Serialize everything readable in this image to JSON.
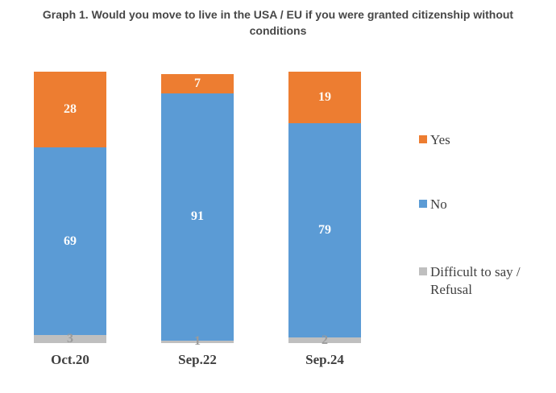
{
  "page": {
    "title_lines": [
      "Graph 1. Would you move to live in the USA / EU if you were granted citizenship without",
      "conditions"
    ]
  },
  "chart_data": {
    "type": "bar",
    "stacked": true,
    "title": "Graph 1. Would you move to live in the USA / EU if you were granted citizenship without conditions",
    "xlabel": "",
    "ylabel": "",
    "categories": [
      "Oct.20",
      "Sep.22",
      "Sep.24"
    ],
    "series": [
      {
        "name": "Yes",
        "color": "#ED7D31",
        "label_color": "#FDF8F1",
        "values": [
          28,
          7,
          19
        ]
      },
      {
        "name": "No",
        "color": "#5B9BD5",
        "label_color": "#FCFDFE",
        "values": [
          69,
          91,
          79
        ]
      },
      {
        "name": "Difficult to say / Refusal",
        "color": "#BFBFBF",
        "label_color": "#9B9B9B",
        "values": [
          3,
          1,
          2
        ]
      }
    ],
    "ylim": [
      0,
      100
    ],
    "value_axis_visible": false,
    "grid": false,
    "data_labels": true,
    "legend_position": "right"
  }
}
